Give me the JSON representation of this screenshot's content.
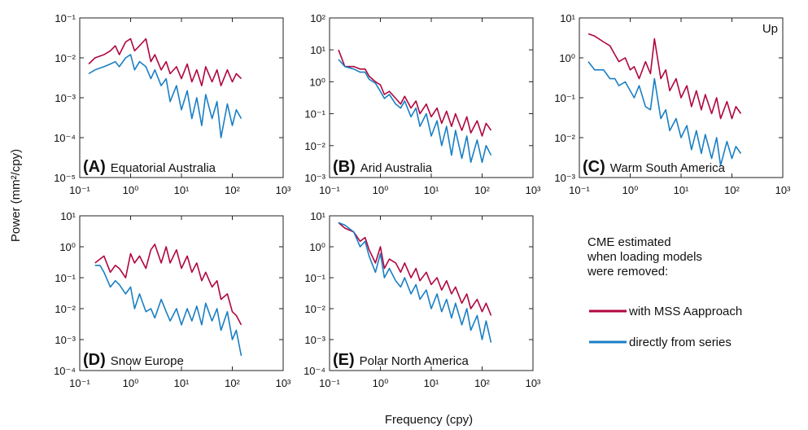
{
  "y_axis_label": "Power (mm²/cpy)",
  "x_axis_label": "Frequency (cpy)",
  "legend": {
    "title": [
      "CME estimated",
      "when loading models",
      "were removed:"
    ],
    "entries": [
      {
        "name": "with MSS Aapproach",
        "color": "#b0063e"
      },
      {
        "name": "directly from series",
        "color": "#1a7fc4"
      }
    ]
  },
  "chart_data": [
    {
      "type": "line",
      "label": "(A)",
      "title": "Equatorial Australia",
      "log_x": true,
      "log_y": true,
      "xlim": [
        0.1,
        1000
      ],
      "xticks": [
        {
          "value": 0.1,
          "label": "10⁻¹"
        },
        {
          "value": 1,
          "label": "10⁰"
        },
        {
          "value": 10,
          "label": "10¹"
        },
        {
          "value": 100,
          "label": "10²"
        },
        {
          "value": 1000,
          "label": "10³"
        }
      ],
      "ylim": [
        1e-05,
        0.1
      ],
      "yticks": [
        {
          "value": 1e-05,
          "label": "10⁻⁵"
        },
        {
          "value": 0.0001,
          "label": "10⁻⁴"
        },
        {
          "value": 0.001,
          "label": "10⁻³"
        },
        {
          "value": 0.01,
          "label": "10⁻²"
        },
        {
          "value": 0.1,
          "label": "10⁻¹"
        }
      ],
      "x": [
        0.15,
        0.2,
        0.3,
        0.4,
        0.5,
        0.6,
        0.8,
        1,
        1.2,
        1.5,
        2,
        2.5,
        3,
        4,
        5,
        6,
        8,
        10,
        13,
        16,
        20,
        25,
        30,
        40,
        50,
        60,
        80,
        100,
        120,
        150
      ],
      "series": [
        {
          "color": "#b0063e",
          "values": [
            0.007,
            0.01,
            0.012,
            0.015,
            0.02,
            0.012,
            0.025,
            0.03,
            0.015,
            0.02,
            0.03,
            0.008,
            0.012,
            0.005,
            0.008,
            0.004,
            0.006,
            0.003,
            0.007,
            0.0025,
            0.005,
            0.002,
            0.006,
            0.0025,
            0.005,
            0.002,
            0.005,
            0.0025,
            0.004,
            0.003
          ]
        },
        {
          "color": "#1a7fc4",
          "values": [
            0.004,
            0.005,
            0.006,
            0.007,
            0.008,
            0.006,
            0.01,
            0.012,
            0.005,
            0.008,
            0.006,
            0.003,
            0.005,
            0.002,
            0.003,
            0.0008,
            0.002,
            0.0005,
            0.0015,
            0.0003,
            0.001,
            0.0002,
            0.0012,
            0.0003,
            0.0008,
            0.0001,
            0.0007,
            0.0002,
            0.0005,
            0.0003
          ]
        }
      ]
    },
    {
      "type": "line",
      "label": "(B)",
      "title": "Arid Australia",
      "log_x": true,
      "log_y": true,
      "xlim": [
        0.1,
        1000
      ],
      "xticks": [
        {
          "value": 0.1,
          "label": "10⁻¹"
        },
        {
          "value": 1,
          "label": "10⁰"
        },
        {
          "value": 10,
          "label": "10¹"
        },
        {
          "value": 100,
          "label": "10²"
        },
        {
          "value": 1000,
          "label": "10³"
        }
      ],
      "ylim": [
        0.001,
        100
      ],
      "yticks": [
        {
          "value": 0.001,
          "label": "10⁻³"
        },
        {
          "value": 0.01,
          "label": "10⁻²"
        },
        {
          "value": 0.1,
          "label": "10⁻¹"
        },
        {
          "value": 1,
          "label": "10⁰"
        },
        {
          "value": 10,
          "label": "10¹"
        },
        {
          "value": 100,
          "label": "10²"
        }
      ],
      "x": [
        0.15,
        0.2,
        0.3,
        0.4,
        0.5,
        0.6,
        0.8,
        1,
        1.2,
        1.5,
        2,
        2.5,
        3,
        4,
        5,
        6,
        8,
        10,
        13,
        16,
        20,
        25,
        30,
        40,
        50,
        60,
        80,
        100,
        120,
        150
      ],
      "series": [
        {
          "color": "#b0063e",
          "values": [
            10,
            3,
            3,
            2.5,
            2.5,
            1.5,
            1,
            0.8,
            0.4,
            0.5,
            0.3,
            0.2,
            0.35,
            0.15,
            0.25,
            0.1,
            0.2,
            0.08,
            0.15,
            0.05,
            0.12,
            0.04,
            0.1,
            0.03,
            0.08,
            0.025,
            0.06,
            0.02,
            0.05,
            0.03
          ]
        },
        {
          "color": "#1a7fc4",
          "values": [
            5,
            3,
            2.5,
            2,
            2,
            1.2,
            0.9,
            0.5,
            0.3,
            0.4,
            0.2,
            0.15,
            0.25,
            0.08,
            0.15,
            0.04,
            0.1,
            0.02,
            0.06,
            0.01,
            0.04,
            0.005,
            0.03,
            0.004,
            0.02,
            0.003,
            0.015,
            0.003,
            0.01,
            0.005
          ]
        }
      ]
    },
    {
      "type": "line",
      "label": "(C)",
      "title": "Warm South America",
      "annotation": "Up",
      "log_x": true,
      "log_y": true,
      "xlim": [
        0.1,
        1000
      ],
      "xticks": [
        {
          "value": 0.1,
          "label": "10⁻¹"
        },
        {
          "value": 1,
          "label": "10⁰"
        },
        {
          "value": 10,
          "label": "10¹"
        },
        {
          "value": 100,
          "label": "10²"
        },
        {
          "value": 1000,
          "label": "10³"
        }
      ],
      "ylim": [
        0.001,
        10
      ],
      "yticks": [
        {
          "value": 0.001,
          "label": "10⁻³"
        },
        {
          "value": 0.01,
          "label": "10⁻²"
        },
        {
          "value": 0.1,
          "label": "10⁻¹"
        },
        {
          "value": 1,
          "label": "10⁰"
        },
        {
          "value": 10,
          "label": "10¹"
        }
      ],
      "x": [
        0.15,
        0.2,
        0.3,
        0.4,
        0.5,
        0.6,
        0.8,
        1,
        1.2,
        1.5,
        2,
        2.5,
        3,
        4,
        5,
        6,
        8,
        10,
        13,
        16,
        20,
        25,
        30,
        40,
        50,
        60,
        80,
        100,
        120,
        150
      ],
      "series": [
        {
          "color": "#b0063e",
          "values": [
            4,
            3.5,
            2.5,
            2,
            1.2,
            0.8,
            1,
            0.5,
            0.6,
            0.3,
            0.8,
            0.4,
            3,
            0.3,
            0.5,
            0.15,
            0.3,
            0.1,
            0.2,
            0.06,
            0.15,
            0.05,
            0.12,
            0.04,
            0.1,
            0.03,
            0.08,
            0.03,
            0.06,
            0.04
          ]
        },
        {
          "color": "#1a7fc4",
          "values": [
            0.8,
            0.5,
            0.5,
            0.3,
            0.3,
            0.2,
            0.25,
            0.15,
            0.1,
            0.2,
            0.06,
            0.05,
            0.3,
            0.03,
            0.05,
            0.015,
            0.03,
            0.01,
            0.02,
            0.005,
            0.015,
            0.004,
            0.012,
            0.003,
            0.01,
            0.002,
            0.008,
            0.003,
            0.006,
            0.004
          ]
        }
      ]
    },
    {
      "type": "line",
      "label": "(D)",
      "title": "Snow Europe",
      "log_x": true,
      "log_y": true,
      "xlim": [
        0.1,
        1000
      ],
      "xticks": [
        {
          "value": 0.1,
          "label": "10⁻¹"
        },
        {
          "value": 1,
          "label": "10⁰"
        },
        {
          "value": 10,
          "label": "10¹"
        },
        {
          "value": 100,
          "label": "10²"
        },
        {
          "value": 1000,
          "label": "10³"
        }
      ],
      "ylim": [
        0.0001,
        10
      ],
      "yticks": [
        {
          "value": 0.0001,
          "label": "10⁻⁴"
        },
        {
          "value": 0.001,
          "label": "10⁻³"
        },
        {
          "value": 0.01,
          "label": "10⁻²"
        },
        {
          "value": 0.1,
          "label": "10⁻¹"
        },
        {
          "value": 1,
          "label": "10⁰"
        },
        {
          "value": 10,
          "label": "10¹"
        }
      ],
      "x": [
        0.2,
        0.25,
        0.3,
        0.4,
        0.5,
        0.6,
        0.8,
        1,
        1.2,
        1.5,
        2,
        2.5,
        3,
        4,
        5,
        6,
        8,
        10,
        13,
        16,
        20,
        25,
        30,
        40,
        50,
        60,
        80,
        100,
        120,
        150
      ],
      "series": [
        {
          "color": "#b0063e",
          "values": [
            0.3,
            0.4,
            0.5,
            0.15,
            0.25,
            0.2,
            0.1,
            0.6,
            0.3,
            0.5,
            0.2,
            0.8,
            1.2,
            0.3,
            1,
            0.3,
            0.8,
            0.2,
            0.5,
            0.15,
            0.3,
            0.08,
            0.15,
            0.05,
            0.08,
            0.02,
            0.03,
            0.008,
            0.006,
            0.003
          ]
        },
        {
          "color": "#1a7fc4",
          "values": [
            0.25,
            0.25,
            0.15,
            0.05,
            0.08,
            0.06,
            0.03,
            0.05,
            0.01,
            0.03,
            0.008,
            0.01,
            0.005,
            0.02,
            0.008,
            0.004,
            0.01,
            0.003,
            0.01,
            0.004,
            0.012,
            0.003,
            0.015,
            0.004,
            0.01,
            0.002,
            0.008,
            0.001,
            0.002,
            0.0003
          ]
        }
      ]
    },
    {
      "type": "line",
      "label": "(E)",
      "title": "Polar North America",
      "log_x": true,
      "log_y": true,
      "xlim": [
        0.1,
        1000
      ],
      "xticks": [
        {
          "value": 0.1,
          "label": "10⁻¹"
        },
        {
          "value": 1,
          "label": "10⁰"
        },
        {
          "value": 10,
          "label": "10¹"
        },
        {
          "value": 100,
          "label": "10²"
        },
        {
          "value": 1000,
          "label": "10³"
        }
      ],
      "ylim": [
        0.0001,
        10
      ],
      "yticks": [
        {
          "value": 0.0001,
          "label": "10⁻⁴"
        },
        {
          "value": 0.001,
          "label": "10⁻³"
        },
        {
          "value": 0.01,
          "label": "10⁻²"
        },
        {
          "value": 0.1,
          "label": "10⁻¹"
        },
        {
          "value": 1,
          "label": "10⁰"
        },
        {
          "value": 10,
          "label": "10¹"
        }
      ],
      "x": [
        0.15,
        0.2,
        0.3,
        0.4,
        0.5,
        0.6,
        0.8,
        1,
        1.2,
        1.5,
        2,
        2.5,
        3,
        4,
        5,
        6,
        8,
        10,
        13,
        16,
        20,
        25,
        30,
        40,
        50,
        60,
        80,
        100,
        120,
        150
      ],
      "series": [
        {
          "color": "#b0063e",
          "values": [
            6,
            4,
            3,
            1.5,
            2,
            0.8,
            0.3,
            1,
            0.2,
            0.4,
            0.3,
            0.15,
            0.3,
            0.1,
            0.2,
            0.08,
            0.15,
            0.06,
            0.1,
            0.04,
            0.08,
            0.03,
            0.05,
            0.015,
            0.03,
            0.01,
            0.02,
            0.008,
            0.015,
            0.006
          ]
        },
        {
          "color": "#1a7fc4",
          "values": [
            6,
            5,
            3,
            1,
            1.5,
            0.5,
            0.15,
            0.6,
            0.1,
            0.2,
            0.08,
            0.05,
            0.1,
            0.03,
            0.06,
            0.02,
            0.04,
            0.01,
            0.03,
            0.008,
            0.02,
            0.005,
            0.015,
            0.003,
            0.01,
            0.002,
            0.006,
            0.001,
            0.004,
            0.0008
          ]
        }
      ]
    }
  ]
}
